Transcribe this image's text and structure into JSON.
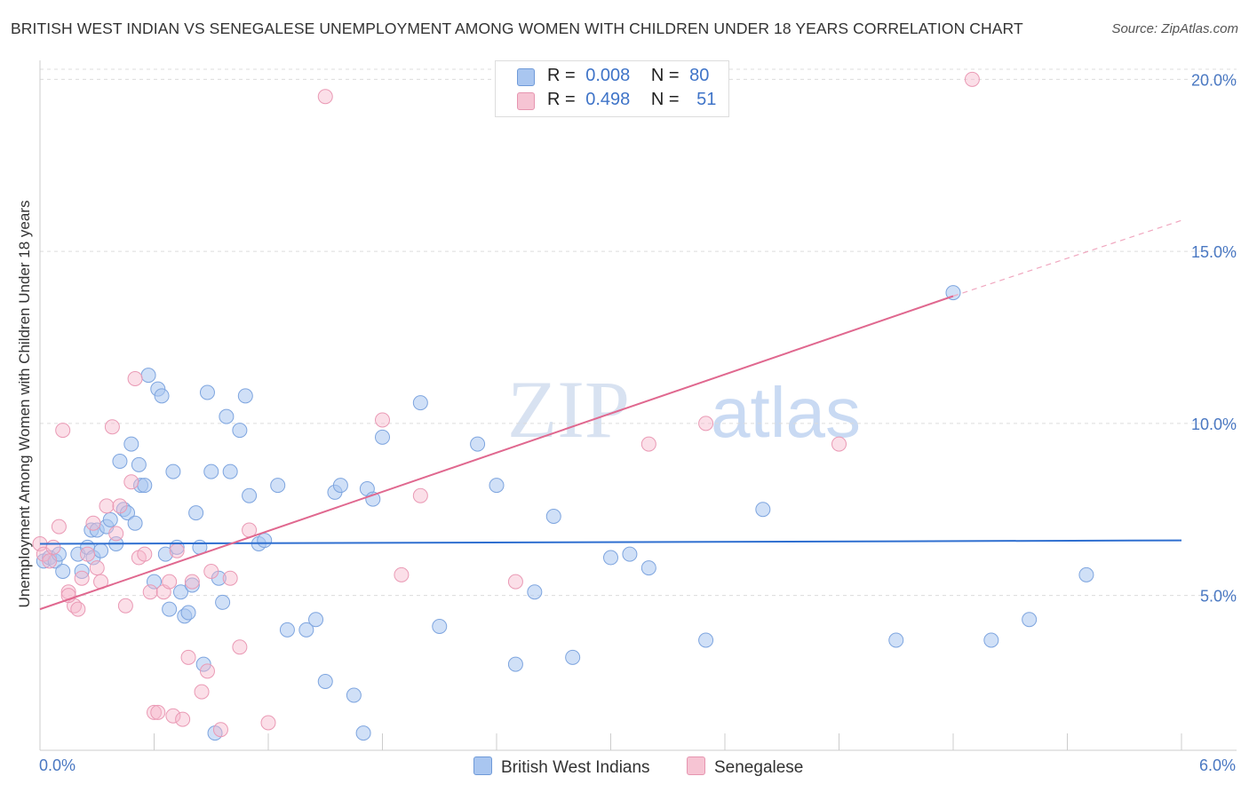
{
  "title": "BRITISH WEST INDIAN VS SENEGALESE UNEMPLOYMENT AMONG WOMEN WITH CHILDREN UNDER 18 YEARS CORRELATION CHART",
  "source": "Source: ZipAtlas.com",
  "watermark": "ZIPatlas",
  "legend": {
    "rows": [
      {
        "r_label": "R =",
        "r_value": "0.008",
        "n_label": "N =",
        "n_value": "80"
      },
      {
        "r_label": "R =",
        "r_value": "0.498",
        "n_label": "N =",
        "n_value": "51"
      }
    ]
  },
  "bottom_legend": {
    "series1": "British West Indians",
    "series2": "Senegalese"
  },
  "chart_data": {
    "type": "scatter",
    "title": "BRITISH WEST INDIAN VS SENEGALESE UNEMPLOYMENT AMONG WOMEN WITH CHILDREN UNDER 18 YEARS CORRELATION CHART",
    "xlabel": "",
    "ylabel": "Unemployment Among Women with Children Under 18 years",
    "xlim": [
      0,
      6
    ],
    "ylim": [
      0.5,
      20.5
    ],
    "x_tick_labels": [
      "0.0%",
      "6.0%"
    ],
    "y_ticks": [
      5,
      10,
      15,
      20
    ],
    "y_tick_labels": [
      "5.0%",
      "10.0%",
      "15.0%",
      "20.0%"
    ],
    "grid": "horizontal dashed",
    "legend_position": "top-center",
    "colors": {
      "series1": "#a9c6f0",
      "series1_line": "#2f6fd0",
      "series2": "#f6b8cc",
      "series2_line": "#e0688f"
    },
    "series": [
      {
        "name": "British West Indians",
        "r": 0.008,
        "n": 80,
        "trend": {
          "x": [
            0,
            6
          ],
          "y": [
            6.5,
            6.6
          ]
        },
        "points": [
          [
            0.02,
            6.0
          ],
          [
            0.05,
            6.1
          ],
          [
            0.08,
            6.0
          ],
          [
            0.1,
            6.2
          ],
          [
            0.12,
            5.7
          ],
          [
            0.2,
            6.2
          ],
          [
            0.22,
            5.7
          ],
          [
            0.25,
            6.4
          ],
          [
            0.27,
            6.9
          ],
          [
            0.28,
            6.1
          ],
          [
            0.3,
            6.9
          ],
          [
            0.32,
            6.3
          ],
          [
            0.35,
            7.0
          ],
          [
            0.37,
            7.2
          ],
          [
            0.4,
            6.5
          ],
          [
            0.42,
            8.9
          ],
          [
            0.44,
            7.5
          ],
          [
            0.46,
            7.4
          ],
          [
            0.48,
            9.4
          ],
          [
            0.5,
            7.1
          ],
          [
            0.52,
            8.8
          ],
          [
            0.53,
            8.2
          ],
          [
            0.55,
            8.2
          ],
          [
            0.57,
            11.4
          ],
          [
            0.6,
            5.4
          ],
          [
            0.62,
            11.0
          ],
          [
            0.64,
            10.8
          ],
          [
            0.66,
            6.2
          ],
          [
            0.68,
            4.6
          ],
          [
            0.7,
            8.6
          ],
          [
            0.72,
            6.4
          ],
          [
            0.74,
            5.1
          ],
          [
            0.76,
            4.4
          ],
          [
            0.78,
            4.5
          ],
          [
            0.8,
            5.3
          ],
          [
            0.82,
            7.4
          ],
          [
            0.84,
            6.4
          ],
          [
            0.86,
            3.0
          ],
          [
            0.88,
            10.9
          ],
          [
            0.9,
            8.6
          ],
          [
            0.92,
            1.0
          ],
          [
            0.94,
            5.5
          ],
          [
            0.96,
            4.8
          ],
          [
            0.98,
            10.2
          ],
          [
            1.0,
            8.6
          ],
          [
            1.05,
            9.8
          ],
          [
            1.08,
            10.8
          ],
          [
            1.1,
            7.9
          ],
          [
            1.15,
            6.5
          ],
          [
            1.18,
            6.6
          ],
          [
            1.3,
            4.0
          ],
          [
            1.4,
            4.0
          ],
          [
            1.45,
            4.3
          ],
          [
            1.5,
            2.5
          ],
          [
            1.55,
            8.0
          ],
          [
            1.58,
            8.2
          ],
          [
            1.65,
            2.1
          ],
          [
            1.7,
            1.0
          ],
          [
            1.72,
            8.1
          ],
          [
            1.75,
            7.8
          ],
          [
            1.8,
            9.6
          ],
          [
            2.0,
            10.6
          ],
          [
            2.1,
            4.1
          ],
          [
            2.3,
            9.4
          ],
          [
            2.4,
            8.2
          ],
          [
            2.5,
            3.0
          ],
          [
            2.6,
            5.1
          ],
          [
            2.7,
            7.3
          ],
          [
            2.8,
            3.2
          ],
          [
            3.0,
            6.1
          ],
          [
            3.1,
            6.2
          ],
          [
            3.2,
            5.8
          ],
          [
            3.5,
            3.7
          ],
          [
            3.8,
            7.5
          ],
          [
            4.5,
            3.7
          ],
          [
            4.8,
            13.8
          ],
          [
            5.0,
            3.7
          ],
          [
            5.2,
            4.3
          ],
          [
            5.5,
            5.6
          ],
          [
            1.25,
            8.2
          ]
        ]
      },
      {
        "name": "Senegalese",
        "r": 0.498,
        "n": 51,
        "trend": {
          "x": [
            0,
            4.8
          ],
          "y": [
            4.6,
            13.7
          ]
        },
        "trend_dashed": {
          "x": [
            4.8,
            6
          ],
          "y": [
            13.7,
            15.9
          ]
        },
        "points": [
          [
            0.0,
            6.5
          ],
          [
            0.02,
            6.2
          ],
          [
            0.05,
            6.0
          ],
          [
            0.07,
            6.4
          ],
          [
            0.1,
            7.0
          ],
          [
            0.12,
            9.8
          ],
          [
            0.15,
            5.1
          ],
          [
            0.18,
            4.7
          ],
          [
            0.2,
            4.6
          ],
          [
            0.22,
            5.5
          ],
          [
            0.25,
            6.2
          ],
          [
            0.28,
            7.1
          ],
          [
            0.3,
            5.8
          ],
          [
            0.32,
            5.4
          ],
          [
            0.35,
            7.6
          ],
          [
            0.38,
            9.9
          ],
          [
            0.4,
            6.8
          ],
          [
            0.42,
            7.6
          ],
          [
            0.45,
            4.7
          ],
          [
            0.48,
            8.3
          ],
          [
            0.5,
            11.3
          ],
          [
            0.52,
            6.1
          ],
          [
            0.55,
            6.2
          ],
          [
            0.58,
            5.1
          ],
          [
            0.6,
            1.6
          ],
          [
            0.62,
            1.6
          ],
          [
            0.65,
            5.1
          ],
          [
            0.68,
            5.4
          ],
          [
            0.7,
            1.5
          ],
          [
            0.72,
            6.3
          ],
          [
            0.75,
            1.4
          ],
          [
            0.78,
            3.2
          ],
          [
            0.8,
            5.4
          ],
          [
            0.85,
            2.2
          ],
          [
            0.88,
            2.8
          ],
          [
            0.9,
            5.7
          ],
          [
            0.95,
            1.1
          ],
          [
            1.0,
            5.5
          ],
          [
            1.05,
            3.5
          ],
          [
            1.1,
            6.9
          ],
          [
            1.2,
            1.3
          ],
          [
            1.5,
            19.5
          ],
          [
            1.8,
            10.1
          ],
          [
            1.9,
            5.6
          ],
          [
            2.0,
            7.9
          ],
          [
            2.5,
            5.4
          ],
          [
            3.2,
            9.4
          ],
          [
            3.5,
            10.0
          ],
          [
            4.9,
            20.0
          ],
          [
            4.2,
            9.4
          ],
          [
            0.15,
            5.0
          ]
        ]
      }
    ]
  }
}
